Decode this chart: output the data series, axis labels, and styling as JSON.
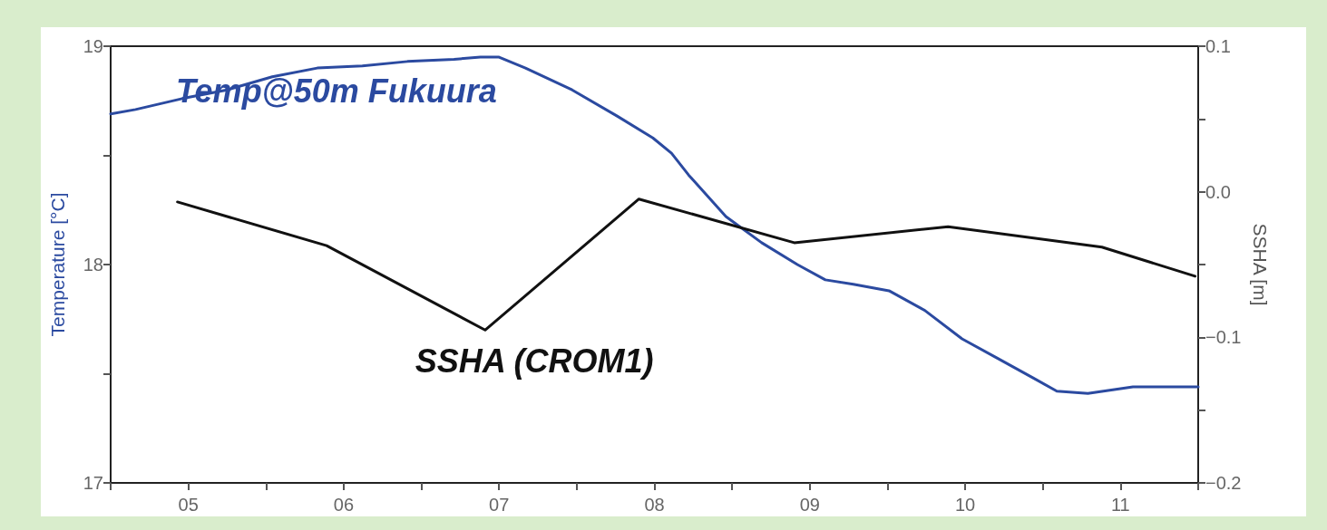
{
  "chart_data": {
    "type": "line",
    "ylabel": "Temperature [°C]",
    "y2label": "SSHA [m]",
    "xlim": [
      5,
      12
    ],
    "xticks": [
      {
        "value": 5,
        "label": null
      },
      {
        "value": 5.5,
        "label": "05"
      },
      {
        "value": 6,
        "label": null
      },
      {
        "value": 6.5,
        "label": "06"
      },
      {
        "value": 7,
        "label": null
      },
      {
        "value": 7.5,
        "label": "07"
      },
      {
        "value": 8,
        "label": null
      },
      {
        "value": 8.5,
        "label": "08"
      },
      {
        "value": 9,
        "label": null
      },
      {
        "value": 9.5,
        "label": "09"
      },
      {
        "value": 10,
        "label": null
      },
      {
        "value": 10.5,
        "label": "10"
      },
      {
        "value": 11,
        "label": null
      },
      {
        "value": 11.5,
        "label": "11"
      },
      {
        "value": 12,
        "label": null
      }
    ],
    "ylim": [
      17,
      19
    ],
    "yticks": [
      17,
      {
        "value": 17.5,
        "label": null
      },
      18,
      {
        "value": 18.5,
        "label": null
      },
      19
    ],
    "y2lim": [
      -0.2,
      0.1
    ],
    "y2ticks": [
      {
        "value": -0.2,
        "label": "−0.2"
      },
      {
        "value": -0.15,
        "label": null
      },
      {
        "value": -0.1,
        "label": "−0.1"
      },
      {
        "value": -0.05,
        "label": null
      },
      {
        "value": 0,
        "label": "0.0"
      },
      {
        "value": 0.05,
        "label": null
      },
      {
        "value": 0.1,
        "label": "0.1"
      }
    ],
    "series": [
      {
        "color": "#2b4aa0",
        "x": [
          5.0,
          5.16,
          5.46,
          5.75,
          6.04,
          6.33,
          6.62,
          6.91,
          7.21,
          7.38,
          7.5,
          7.67,
          7.97,
          8.26,
          8.49,
          8.61,
          8.72,
          8.96,
          9.19,
          9.42,
          9.6,
          9.78,
          10.01,
          10.24,
          10.48,
          10.71,
          10.94,
          11.09,
          11.29,
          11.58,
          11.82,
          12.0
        ],
        "values": [
          18.69,
          18.71,
          18.76,
          18.8,
          18.86,
          18.9,
          18.91,
          18.93,
          18.94,
          18.95,
          18.95,
          18.9,
          18.8,
          18.68,
          18.58,
          18.51,
          18.41,
          18.22,
          18.1,
          18.0,
          17.93,
          17.91,
          17.88,
          17.79,
          17.66,
          17.57,
          17.48,
          17.42,
          17.41,
          17.44,
          17.44,
          17.44
        ]
      },
      {
        "color": "#111111",
        "axis": "y2",
        "x": [
          5.43,
          6.39,
          7.41,
          8.4,
          9.4,
          10.39,
          11.38,
          11.98
        ],
        "values": [
          -0.007,
          -0.037,
          -0.095,
          -0.005,
          -0.035,
          -0.024,
          -0.038,
          -0.058
        ]
      }
    ],
    "annotations": [
      "Temp@50m Fukuura",
      "SSHA (CROM1)"
    ],
    "grid": false,
    "marker": "none",
    "line_style": "solid"
  }
}
